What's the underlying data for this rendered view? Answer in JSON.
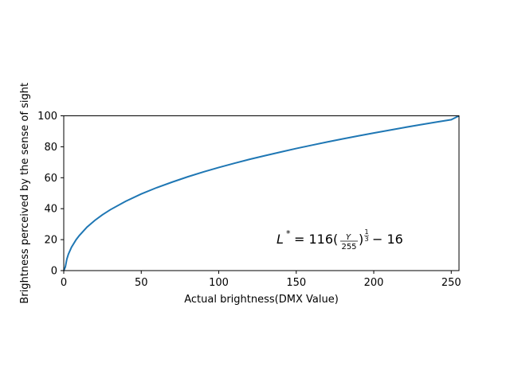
{
  "chart_data": {
    "type": "line",
    "title": "",
    "xlabel": "Actual brightness(DMX Value)",
    "ylabel": "Brightness perceived by the sense of sight",
    "xlim": [
      0,
      255
    ],
    "ylim": [
      0,
      100
    ],
    "x_ticks": [
      0,
      50,
      100,
      150,
      200,
      250
    ],
    "y_ticks": [
      0,
      20,
      40,
      60,
      80,
      100
    ],
    "grid": false,
    "series": [
      {
        "color": "#1f77b4",
        "x": [
          0,
          1,
          2,
          3,
          5,
          8,
          10,
          15,
          20,
          25,
          30,
          40,
          50,
          60,
          70,
          80,
          90,
          100,
          110,
          120,
          130,
          140,
          150,
          160,
          170,
          180,
          190,
          200,
          210,
          220,
          230,
          240,
          250,
          255
        ],
        "y": [
          0,
          2.3,
          7.4,
          10.6,
          15.1,
          20.0,
          22.6,
          28.1,
          32.4,
          36.1,
          39.3,
          44.8,
          49.5,
          53.6,
          57.2,
          60.6,
          63.7,
          66.6,
          69.3,
          71.9,
          74.3,
          76.6,
          78.9,
          81.0,
          83.1,
          85.1,
          87.0,
          88.9,
          90.7,
          92.5,
          94.2,
          95.9,
          97.5,
          100
        ]
      }
    ],
    "annotation": {
      "lhs": "L",
      "lhs_sup": "*",
      "eq": "= 116(",
      "frac_num": "Y",
      "frac_den": "255",
      "close": ")",
      "exp_num": "1",
      "exp_den": "3",
      "tail": "− 16",
      "at": [
        140,
        20
      ]
    }
  }
}
